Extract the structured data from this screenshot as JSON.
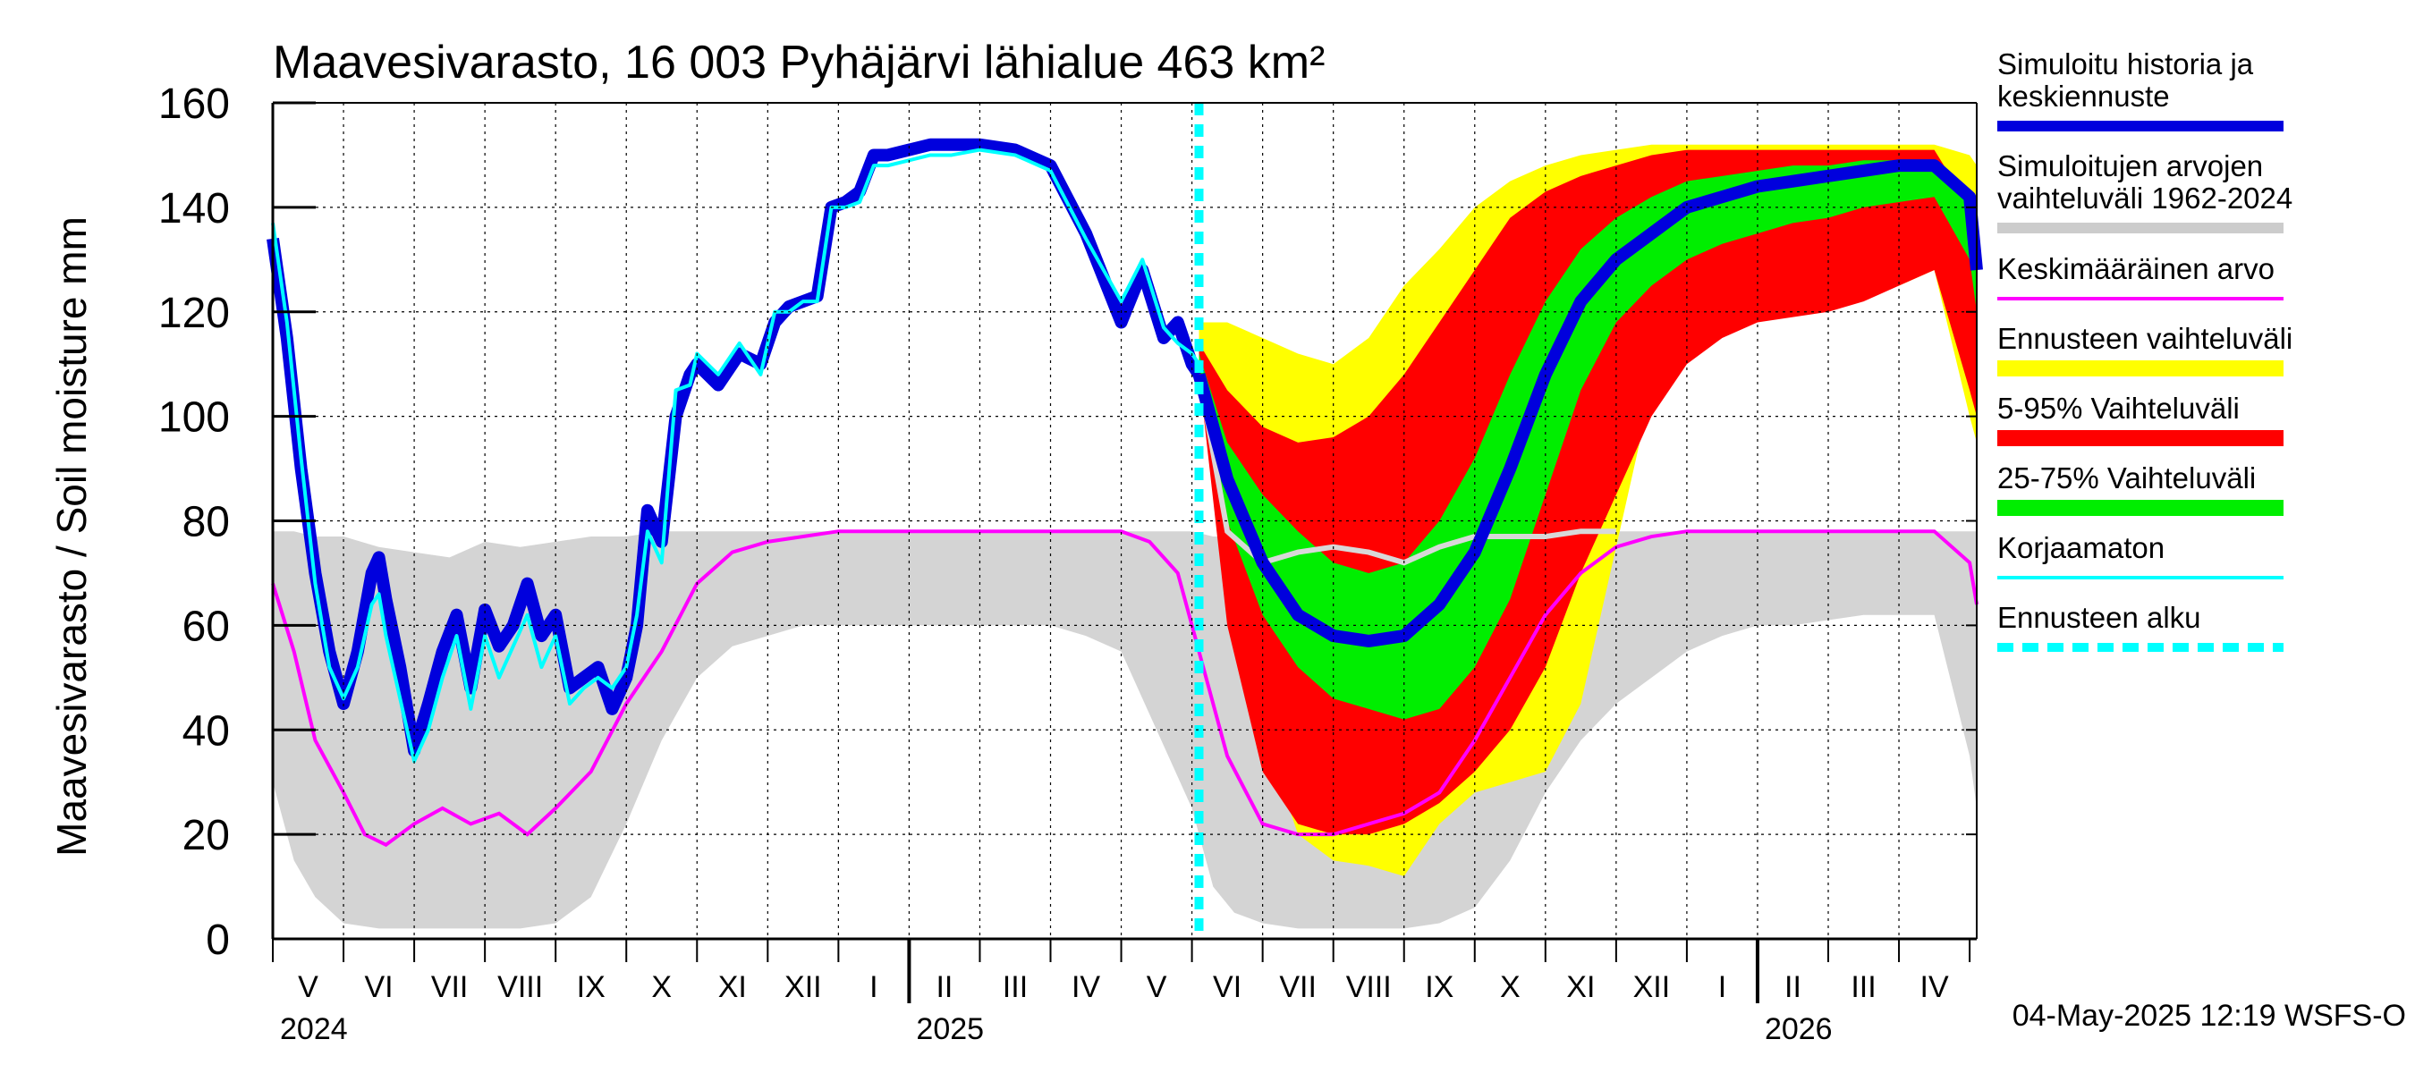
{
  "chart_data": {
    "type": "area",
    "title": "Maavesivarasto, 16 003 Pyhäjärvi lähialue 463 km²",
    "ylabel": "Maavesivarasto / Soil moisture   mm",
    "xlabel": "",
    "ylim": [
      0,
      160
    ],
    "yticks": [
      0,
      20,
      40,
      60,
      80,
      100,
      120,
      140,
      160
    ],
    "grid": true,
    "legend_position": "right",
    "footer": "04-May-2025 12:19 WSFS-O",
    "x_unit": "months since 2024-04-01",
    "xlim": [
      0,
      24.1
    ],
    "forecast_start": 13.1,
    "month_labels": [
      {
        "label": "V",
        "x": 1
      },
      {
        "label": "VI",
        "x": 2
      },
      {
        "label": "VII",
        "x": 3
      },
      {
        "label": "VIII",
        "x": 4
      },
      {
        "label": "IX",
        "x": 5
      },
      {
        "label": "X",
        "x": 6
      },
      {
        "label": "XI",
        "x": 7
      },
      {
        "label": "XII",
        "x": 8
      },
      {
        "label": "I",
        "x": 9
      },
      {
        "label": "II",
        "x": 10
      },
      {
        "label": "III",
        "x": 11
      },
      {
        "label": "IV",
        "x": 12
      },
      {
        "label": "V",
        "x": 13
      },
      {
        "label": "VI",
        "x": 14
      },
      {
        "label": "VII",
        "x": 15
      },
      {
        "label": "VIII",
        "x": 16
      },
      {
        "label": "IX",
        "x": 17
      },
      {
        "label": "X",
        "x": 18
      },
      {
        "label": "XI",
        "x": 19
      },
      {
        "label": "XII",
        "x": 20
      },
      {
        "label": "I",
        "x": 21
      },
      {
        "label": "II",
        "x": 22
      },
      {
        "label": "III",
        "x": 23
      },
      {
        "label": "IV",
        "x": 24
      }
    ],
    "year_labels": [
      {
        "label": "2024",
        "x": 0
      },
      {
        "label": "2025",
        "x": 9
      },
      {
        "label": "2026",
        "x": 21
      }
    ],
    "legend": [
      {
        "label": "Simuloitu historia ja keskiennuste",
        "color": "#0000dd",
        "style": "thick"
      },
      {
        "label": "Simuloitujen arvojen vaihteluväli 1962-2024",
        "color": "#cccccc",
        "style": "thick"
      },
      {
        "label": "Keskimääräinen arvo",
        "color": "#ff00ff",
        "style": "thin"
      },
      {
        "label": "Ennusteen vaihteluväli",
        "color": "#ffff00",
        "style": "band"
      },
      {
        "label": "5-95% Vaihteluväli",
        "color": "#ff0000",
        "style": "band"
      },
      {
        "label": "25-75% Vaihteluväli",
        "color": "#00ee00",
        "style": "band"
      },
      {
        "label": "Korjaamaton",
        "color": "#00ffff",
        "style": "thin"
      },
      {
        "label": "Ennusteen alku",
        "color": "#00ffff",
        "style": "dashed"
      }
    ],
    "series": {
      "hist_band": {
        "x": [
          0,
          0.3,
          0.6,
          1,
          1.5,
          2,
          2.5,
          3,
          3.5,
          4,
          4.5,
          5,
          5.5,
          6,
          6.5,
          7,
          7.5,
          8,
          8.5,
          9,
          9.5,
          10,
          10.5,
          11,
          11.5,
          12,
          12.5,
          13,
          13.3,
          13.6,
          14,
          14.5,
          15,
          15.5,
          16,
          16.5,
          17,
          17.5,
          18,
          18.5,
          19,
          19.5,
          20,
          20.5,
          21,
          21.5,
          22,
          22.5,
          23,
          23.5,
          24,
          24.1
        ],
        "upper": [
          78,
          78,
          77,
          77,
          75,
          74,
          73,
          76,
          75,
          76,
          77,
          77,
          78,
          78,
          78,
          78,
          78,
          78,
          78,
          78,
          78,
          78,
          78,
          78,
          78,
          78,
          78,
          78,
          77,
          77,
          76,
          75,
          74,
          75,
          76,
          77,
          78,
          78,
          78,
          78,
          78,
          78,
          78,
          78,
          78,
          78,
          78,
          78,
          78,
          78,
          78,
          78
        ],
        "lower": [
          30,
          15,
          8,
          3,
          2,
          2,
          2,
          2,
          2,
          3,
          8,
          22,
          38,
          50,
          56,
          58,
          60,
          60,
          60,
          60,
          60,
          60,
          60,
          60,
          58,
          55,
          40,
          25,
          10,
          5,
          3,
          2,
          2,
          2,
          2,
          3,
          6,
          15,
          28,
          38,
          45,
          50,
          55,
          58,
          60,
          60,
          61,
          62,
          62,
          62,
          35,
          25
        ]
      },
      "mean": {
        "x": [
          0,
          0.3,
          0.6,
          1,
          1.3,
          1.6,
          2,
          2.4,
          2.8,
          3.2,
          3.6,
          4,
          4.5,
          5,
          5.5,
          6,
          6.5,
          7,
          7.5,
          8,
          8.5,
          9,
          9.5,
          10,
          10.5,
          11,
          11.5,
          12,
          12.4,
          12.8,
          13.1,
          13.5,
          14,
          14.5,
          15,
          15.5,
          16,
          16.5,
          17,
          17.5,
          18,
          18.5,
          19,
          19.5,
          20,
          20.5,
          21,
          21.5,
          22,
          22.5,
          23,
          23.5,
          24,
          24.1
        ],
        "values": [
          68,
          55,
          38,
          28,
          20,
          18,
          22,
          25,
          22,
          24,
          20,
          25,
          32,
          45,
          55,
          68,
          74,
          76,
          77,
          78,
          78,
          78,
          78,
          78,
          78,
          78,
          78,
          78,
          76,
          70,
          55,
          35,
          22,
          20,
          20,
          22,
          24,
          28,
          38,
          50,
          62,
          70,
          75,
          77,
          78,
          78,
          78,
          78,
          78,
          78,
          78,
          78,
          72,
          64
        ]
      },
      "forecast_yellow": {
        "x": [
          13.1,
          13.5,
          14,
          14.5,
          15,
          15.5,
          16,
          16.5,
          17,
          17.5,
          18,
          18.5,
          19,
          19.5,
          20,
          20.5,
          21,
          21.5,
          22,
          22.5,
          23,
          23.5,
          24,
          24.1
        ],
        "upper": [
          118,
          118,
          115,
          112,
          110,
          115,
          125,
          132,
          140,
          145,
          148,
          150,
          151,
          152,
          152,
          152,
          152,
          152,
          152,
          152,
          152,
          152,
          150,
          148
        ],
        "lower": [
          108,
          70,
          40,
          20,
          15,
          14,
          12,
          22,
          28,
          30,
          32,
          45,
          75,
          105,
          118,
          119,
          120,
          121,
          122,
          123,
          125,
          128,
          100,
          95
        ]
      },
      "forecast_red": {
        "x": [
          13.1,
          13.5,
          14,
          14.5,
          15,
          15.5,
          16,
          16.5,
          17,
          17.5,
          18,
          18.5,
          19,
          19.5,
          20,
          20.5,
          21,
          21.5,
          22,
          22.5,
          23,
          23.5,
          24,
          24.1
        ],
        "upper": [
          114,
          105,
          98,
          95,
          96,
          100,
          108,
          118,
          128,
          138,
          143,
          146,
          148,
          150,
          151,
          151,
          151,
          151,
          151,
          151,
          151,
          151,
          140,
          130
        ],
        "lower": [
          108,
          60,
          32,
          22,
          20,
          20,
          22,
          26,
          32,
          40,
          52,
          70,
          85,
          100,
          110,
          115,
          118,
          119,
          120,
          122,
          125,
          128,
          105,
          100
        ]
      },
      "forecast_green": {
        "x": [
          13.1,
          13.5,
          14,
          14.5,
          15,
          15.5,
          16,
          16.5,
          17,
          17.5,
          18,
          18.5,
          19,
          19.5,
          20,
          20.5,
          21,
          21.5,
          22,
          22.5,
          23,
          23.5,
          24,
          24.1
        ],
        "upper": [
          112,
          95,
          85,
          78,
          72,
          70,
          72,
          80,
          92,
          108,
          122,
          132,
          138,
          142,
          145,
          146,
          147,
          148,
          148,
          149,
          149,
          149,
          143,
          132
        ],
        "lower": [
          110,
          80,
          62,
          52,
          46,
          44,
          42,
          44,
          52,
          65,
          85,
          105,
          118,
          125,
          130,
          133,
          135,
          137,
          138,
          140,
          141,
          142,
          130,
          120
        ]
      },
      "median": {
        "x": [
          13.1,
          13.5,
          14,
          14.5,
          15,
          15.5,
          16,
          16.5,
          17,
          17.5,
          18,
          18.5,
          19,
          19.5,
          20,
          20.5,
          21,
          21.5,
          22,
          22.5,
          23,
          23.5,
          24,
          24.1
        ],
        "values": [
          108,
          88,
          72,
          62,
          58,
          57,
          58,
          64,
          74,
          90,
          108,
          122,
          130,
          135,
          140,
          142,
          144,
          145,
          146,
          147,
          148,
          148,
          142,
          128
        ]
      },
      "history": {
        "x": [
          0,
          0.2,
          0.4,
          0.6,
          0.8,
          1,
          1.2,
          1.4,
          1.5,
          1.6,
          1.8,
          2,
          2.2,
          2.4,
          2.6,
          2.8,
          3,
          3.2,
          3.4,
          3.6,
          3.8,
          4,
          4.2,
          4.4,
          4.6,
          4.8,
          5,
          5.15,
          5.3,
          5.5,
          5.7,
          5.9,
          6,
          6.3,
          6.6,
          6.9,
          7.1,
          7.3,
          7.5,
          7.7,
          7.9,
          8.1,
          8.3,
          8.5,
          8.7,
          9,
          9.3,
          9.6,
          10,
          10.5,
          11,
          11.5,
          12,
          12.3,
          12.6,
          12.8,
          13,
          13.1
        ],
        "values": [
          134,
          115,
          90,
          70,
          55,
          45,
          55,
          70,
          73,
          65,
          52,
          36,
          45,
          55,
          62,
          48,
          63,
          56,
          60,
          68,
          58,
          62,
          48,
          50,
          52,
          44,
          50,
          60,
          82,
          76,
          100,
          108,
          110,
          106,
          112,
          110,
          118,
          121,
          122,
          123,
          140,
          141,
          143,
          150,
          150,
          151,
          152,
          152,
          152,
          151,
          148,
          135,
          118,
          128,
          115,
          118,
          110,
          108
        ]
      },
      "uncorrected": {
        "x": [
          0,
          0.2,
          0.4,
          0.6,
          0.8,
          1,
          1.2,
          1.4,
          1.5,
          1.6,
          1.8,
          2,
          2.2,
          2.4,
          2.6,
          2.8,
          3,
          3.2,
          3.4,
          3.6,
          3.8,
          4,
          4.2,
          4.4,
          4.6,
          4.8,
          5,
          5.15,
          5.3,
          5.5,
          5.7,
          5.9,
          6,
          6.3,
          6.6,
          6.9,
          7.1,
          7.3,
          7.5,
          7.7,
          7.9,
          8.1,
          8.3,
          8.5,
          8.7,
          9,
          9.3,
          9.6,
          10,
          10.5,
          11,
          11.5,
          12,
          12.3,
          12.6,
          12.8,
          13,
          13.1
        ],
        "values": [
          137,
          118,
          92,
          68,
          52,
          46,
          52,
          64,
          66,
          58,
          46,
          34,
          40,
          50,
          58,
          44,
          58,
          50,
          56,
          62,
          52,
          58,
          45,
          48,
          50,
          48,
          52,
          62,
          78,
          72,
          105,
          106,
          112,
          108,
          114,
          108,
          120,
          120,
          122,
          122,
          140,
          140,
          141,
          148,
          148,
          149,
          150,
          150,
          151,
          150,
          147,
          134,
          122,
          130,
          117,
          114,
          112,
          110
        ]
      },
      "hist_median_forecast_grey": {
        "x": [
          13.1,
          13.5,
          14,
          14.5,
          15,
          15.5,
          16,
          16.5,
          17,
          17.5,
          18,
          18.5,
          19
        ],
        "values": [
          108,
          78,
          72,
          74,
          75,
          74,
          72,
          75,
          77,
          77,
          77,
          78,
          78
        ]
      }
    }
  }
}
